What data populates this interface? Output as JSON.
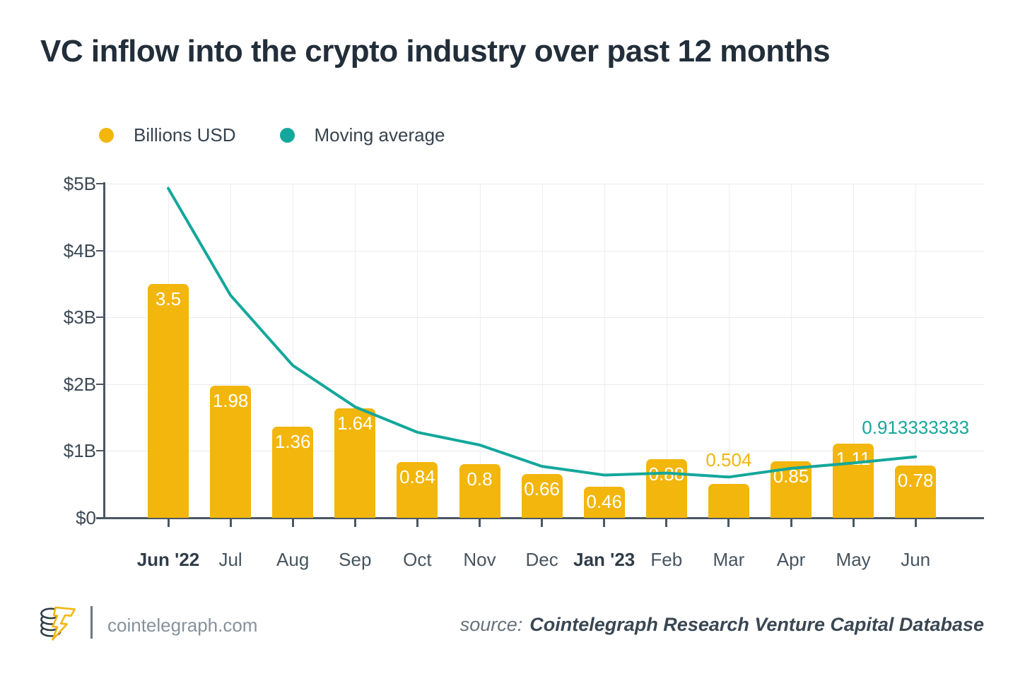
{
  "chart_data": {
    "type": "bar",
    "title": "VC inflow into the crypto industry over past 12 months",
    "categories": [
      "Jun '22",
      "Jul",
      "Aug",
      "Sep",
      "Oct",
      "Nov",
      "Dec",
      "Jan '23",
      "Feb",
      "Mar",
      "Apr",
      "May",
      "Jun"
    ],
    "bold_categories": [
      "Jun '22",
      "Jan '23"
    ],
    "series": [
      {
        "name": "Billions USD",
        "type": "bar",
        "color": "#F2B60C",
        "values": [
          3.5,
          1.98,
          1.36,
          1.64,
          0.84,
          0.8,
          0.66,
          0.46,
          0.88,
          0.504,
          0.85,
          1.11,
          0.78
        ],
        "labels": [
          "3.5",
          "1.98",
          "1.36",
          "1.64",
          "0.84",
          "0.8",
          "0.66",
          "0.46",
          "0.88",
          "0.504",
          "0.85",
          "1.11",
          "0.78"
        ],
        "label_positions": [
          "inside",
          "inside",
          "inside",
          "inside",
          "inside",
          "inside",
          "inside",
          "inside",
          "inside",
          "above",
          "inside",
          "inside",
          "inside"
        ]
      },
      {
        "name": "Moving average",
        "type": "line",
        "color": "#14A79B",
        "values": [
          4.93,
          3.33,
          2.28,
          1.66,
          1.28,
          1.09,
          0.77,
          0.64,
          0.67,
          0.61,
          0.74,
          0.82,
          0.913333333
        ],
        "end_label": "0.913333333"
      }
    ],
    "xlabel": "",
    "ylabel": "",
    "ylim": [
      0,
      5
    ],
    "y_ticks": [
      "$0",
      "$1B",
      "$2B",
      "$3B",
      "$4B",
      "$5B"
    ],
    "grid": true,
    "legend_position": "top-left"
  },
  "footer": {
    "site": "cointelegraph.com",
    "source_prefix": "source:",
    "source_text": "Cointelegraph Research Venture Capital Database"
  },
  "colors": {
    "bar": "#F2B60C",
    "line": "#14A79B",
    "title": "#222E3A",
    "axis": "#4A5763",
    "grid": "#ECEDEF",
    "background": "#FFFFFF"
  }
}
